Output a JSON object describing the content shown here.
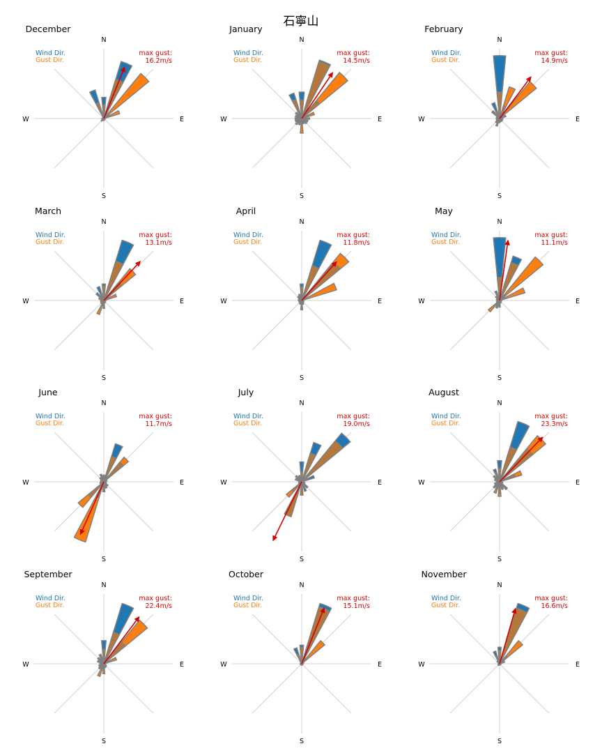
{
  "chart_data": {
    "type": "wind-rose",
    "title": "石寧山",
    "direction_labels": {
      "north": "N",
      "east": "E",
      "south": "S",
      "west": "W"
    },
    "legend": {
      "wind": "Wind Dir.",
      "gust": "Gust Dir."
    },
    "gust_prefix": "max gust:",
    "colors": {
      "wind": "#1f77b4",
      "gust": "#ff7f0e",
      "overlap": "#b5773a",
      "arrow": "#d40000",
      "axis": "#d0d0d0",
      "bar_edge": "#808080"
    },
    "direction_order": [
      "N",
      "NNE",
      "NE",
      "ENE",
      "E",
      "ESE",
      "SE",
      "SSE",
      "S",
      "SSW",
      "SW",
      "WSW",
      "W",
      "WNW",
      "NW",
      "NNW"
    ],
    "months": [
      {
        "name": "December",
        "max_gust": "16.2m/s",
        "arrow": {
          "dir": 22,
          "len": 0.85
        },
        "wind": [
          0.32,
          0.9,
          0.1,
          0.03,
          0.02,
          0.02,
          0.02,
          0.02,
          0.03,
          0.03,
          0.05,
          0.03,
          0.03,
          0.02,
          0.02,
          0.45
        ],
        "gust": [
          0.2,
          0.62,
          0.88,
          0.25,
          0.02,
          0.02,
          0.02,
          0.02,
          0.03,
          0.03,
          0.05,
          0.02,
          0.02,
          0.02,
          0.02,
          0.25
        ]
      },
      {
        "name": "January",
        "max_gust": "14.5m/s",
        "arrow": {
          "dir": 34,
          "len": 0.85
        },
        "wind": [
          0.4,
          0.92,
          0.35,
          0.04,
          0.03,
          0.04,
          0.06,
          0.08,
          0.1,
          0.05,
          0.08,
          0.1,
          0.08,
          0.08,
          0.12,
          0.4
        ],
        "gust": [
          0.28,
          0.9,
          0.9,
          0.2,
          0.12,
          0.1,
          0.1,
          0.08,
          0.22,
          0.1,
          0.12,
          0.1,
          0.1,
          0.1,
          0.12,
          0.3
        ]
      },
      {
        "name": "February",
        "max_gust": "14.9m/s",
        "arrow": {
          "dir": 37,
          "len": 0.8
        },
        "wind": [
          0.95,
          0.2,
          0.06,
          0.04,
          0.03,
          0.03,
          0.03,
          0.04,
          0.06,
          0.05,
          0.06,
          0.05,
          0.05,
          0.05,
          0.15,
          0.25
        ],
        "gust": [
          0.4,
          0.5,
          0.72,
          0.1,
          0.05,
          0.05,
          0.05,
          0.05,
          0.06,
          0.12,
          0.08,
          0.05,
          0.05,
          0.05,
          0.12,
          0.12
        ]
      },
      {
        "name": "March",
        "max_gust": "13.1m/s",
        "arrow": {
          "dir": 43,
          "len": 0.82
        },
        "wind": [
          0.25,
          0.95,
          0.35,
          0.05,
          0.03,
          0.03,
          0.03,
          0.04,
          0.08,
          0.05,
          0.05,
          0.04,
          0.05,
          0.08,
          0.15,
          0.22
        ],
        "gust": [
          0.22,
          0.62,
          0.62,
          0.2,
          0.03,
          0.03,
          0.03,
          0.04,
          0.12,
          0.22,
          0.06,
          0.05,
          0.05,
          0.05,
          0.1,
          0.1
        ]
      },
      {
        "name": "April",
        "max_gust": "11.8m/s",
        "arrow": {
          "dir": 42,
          "len": 0.8
        },
        "wind": [
          0.25,
          0.95,
          0.75,
          0.06,
          0.03,
          0.03,
          0.04,
          0.06,
          0.14,
          0.05,
          0.05,
          0.04,
          0.05,
          0.05,
          0.08,
          0.1
        ],
        "gust": [
          0.2,
          0.55,
          0.92,
          0.55,
          0.03,
          0.03,
          0.04,
          0.06,
          0.14,
          0.06,
          0.05,
          0.04,
          0.05,
          0.05,
          0.06,
          0.08
        ]
      },
      {
        "name": "May",
        "max_gust": "11.1m/s",
        "arrow": {
          "dir": 8,
          "len": 0.93
        },
        "wind": [
          0.95,
          0.7,
          0.12,
          0.04,
          0.03,
          0.03,
          0.03,
          0.04,
          0.1,
          0.1,
          0.06,
          0.04,
          0.04,
          0.05,
          0.08,
          0.15
        ],
        "gust": [
          0.35,
          0.6,
          0.85,
          0.4,
          0.03,
          0.03,
          0.03,
          0.04,
          0.08,
          0.12,
          0.22,
          0.05,
          0.04,
          0.05,
          0.05,
          0.12
        ]
      },
      {
        "name": "June",
        "max_gust": "11.7m/s",
        "arrow": {
          "dir": 204,
          "len": 0.88
        },
        "wind": [
          0.1,
          0.6,
          0.38,
          0.04,
          0.03,
          0.04,
          0.08,
          0.1,
          0.15,
          0.25,
          0.3,
          0.06,
          0.05,
          0.05,
          0.08,
          0.12
        ],
        "gust": [
          0.1,
          0.4,
          0.48,
          0.05,
          0.03,
          0.04,
          0.08,
          0.1,
          0.15,
          0.95,
          0.5,
          0.06,
          0.05,
          0.05,
          0.08,
          0.08
        ]
      },
      {
        "name": "July",
        "max_gust": "19.0m/s",
        "arrow": {
          "dir": 206,
          "len": 1.0
        },
        "wind": [
          0.3,
          0.62,
          0.95,
          0.2,
          0.03,
          0.05,
          0.12,
          0.15,
          0.2,
          0.55,
          0.2,
          0.05,
          0.04,
          0.1,
          0.12,
          0.1
        ],
        "gust": [
          0.15,
          0.45,
          0.8,
          0.1,
          0.03,
          0.05,
          0.08,
          0.08,
          0.2,
          0.55,
          0.3,
          0.05,
          0.04,
          0.08,
          0.1,
          0.08
        ]
      },
      {
        "name": "August",
        "max_gust": "23.3m/s",
        "arrow": {
          "dir": 44,
          "len": 0.95
        },
        "wind": [
          0.32,
          0.95,
          0.65,
          0.25,
          0.04,
          0.05,
          0.15,
          0.12,
          0.18,
          0.12,
          0.1,
          0.08,
          0.05,
          0.08,
          0.12,
          0.2
        ],
        "gust": [
          0.2,
          0.55,
          0.9,
          0.35,
          0.04,
          0.05,
          0.15,
          0.12,
          0.22,
          0.18,
          0.12,
          0.08,
          0.05,
          0.08,
          0.1,
          0.15
        ]
      },
      {
        "name": "September",
        "max_gust": "22.4m/s",
        "arrow": {
          "dir": 37,
          "len": 0.9
        },
        "wind": [
          0.35,
          0.95,
          0.42,
          0.05,
          0.03,
          0.03,
          0.05,
          0.06,
          0.1,
          0.08,
          0.08,
          0.06,
          0.06,
          0.1,
          0.12,
          0.15
        ],
        "gust": [
          0.22,
          0.5,
          0.85,
          0.2,
          0.03,
          0.03,
          0.05,
          0.06,
          0.15,
          0.2,
          0.1,
          0.08,
          0.06,
          0.08,
          0.1,
          0.12
        ]
      },
      {
        "name": "October",
        "max_gust": "15.1m/s",
        "arrow": {
          "dir": 22,
          "len": 0.92
        },
        "wind": [
          0.28,
          0.95,
          0.1,
          0.03,
          0.02,
          0.02,
          0.02,
          0.02,
          0.02,
          0.02,
          0.02,
          0.02,
          0.02,
          0.02,
          0.02,
          0.25
        ],
        "gust": [
          0.25,
          0.9,
          0.45,
          0.03,
          0.02,
          0.02,
          0.02,
          0.02,
          0.02,
          0.02,
          0.02,
          0.02,
          0.02,
          0.02,
          0.02,
          0.15
        ]
      },
      {
        "name": "November",
        "max_gust": "16.6m/s",
        "arrow": {
          "dir": 16,
          "len": 0.88
        },
        "wind": [
          0.25,
          0.95,
          0.15,
          0.03,
          0.02,
          0.02,
          0.02,
          0.02,
          0.02,
          0.02,
          0.03,
          0.02,
          0.02,
          0.02,
          0.05,
          0.2
        ],
        "gust": [
          0.2,
          0.88,
          0.45,
          0.08,
          0.02,
          0.02,
          0.02,
          0.02,
          0.02,
          0.02,
          0.03,
          0.02,
          0.02,
          0.02,
          0.05,
          0.12
        ]
      }
    ]
  }
}
